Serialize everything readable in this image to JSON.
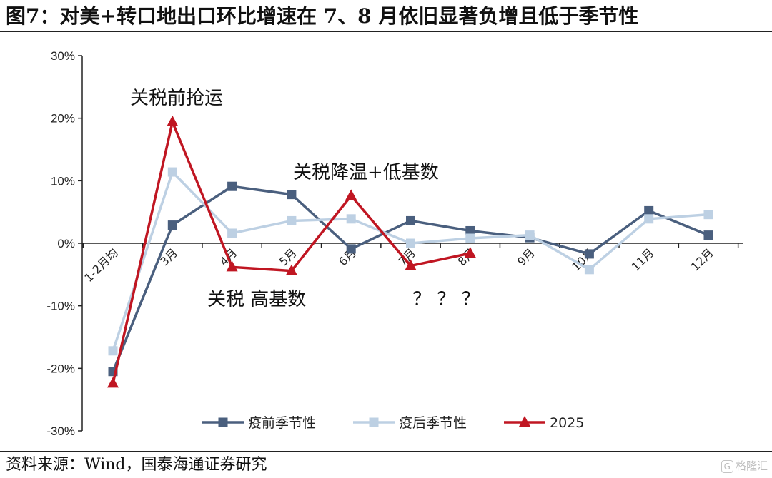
{
  "page": {
    "title": "图7：对美+转口地出口环比增速在 7、8 月依旧显著负增且低于季节性",
    "source": "资料来源：Wind，国泰海通证券研究",
    "watermark": "格隆汇",
    "watermark_icon": "G"
  },
  "chart_data": {
    "type": "line",
    "title": "",
    "xlabel": "",
    "ylabel": "",
    "categories": [
      "1-2月均",
      "3月",
      "4月",
      "5月",
      "6月",
      "7月",
      "8月",
      "9月",
      "10月",
      "11月",
      "12月"
    ],
    "ylim": [
      -30,
      30
    ],
    "yticks": [
      30,
      20,
      10,
      0,
      -10,
      -20,
      -30
    ],
    "ytick_labels": [
      "30%",
      "20%",
      "10%",
      "0%",
      "-10%",
      "-20%",
      "-30%"
    ],
    "grid": false,
    "legend_position": "bottom",
    "series": [
      {
        "name": "疫前季节性",
        "color": "#4a5f7e",
        "marker": "square",
        "values": [
          -20.5,
          2.9,
          9.1,
          7.8,
          -0.9,
          3.6,
          2.0,
          0.9,
          -1.7,
          5.2,
          1.3
        ]
      },
      {
        "name": "疫后季节性",
        "color": "#bdd0e3",
        "marker": "square",
        "values": [
          -17.2,
          11.4,
          1.6,
          3.6,
          3.9,
          0.0,
          0.8,
          1.3,
          -4.2,
          3.9,
          4.6
        ]
      },
      {
        "name": "2025",
        "color": "#c01622",
        "marker": "triangle",
        "values": [
          -22.4,
          19.4,
          -3.8,
          -4.4,
          7.6,
          -3.6,
          -1.6,
          null,
          null,
          null,
          null
        ]
      }
    ],
    "annotations": [
      {
        "text": "关税前抢运",
        "near": "3月"
      },
      {
        "text": "关税降温+低基数",
        "near": "6月"
      },
      {
        "text": "关税  高基数",
        "near": "4月-5月"
      },
      {
        "text": "？ ？ ？",
        "near": "7月-8月"
      }
    ]
  }
}
